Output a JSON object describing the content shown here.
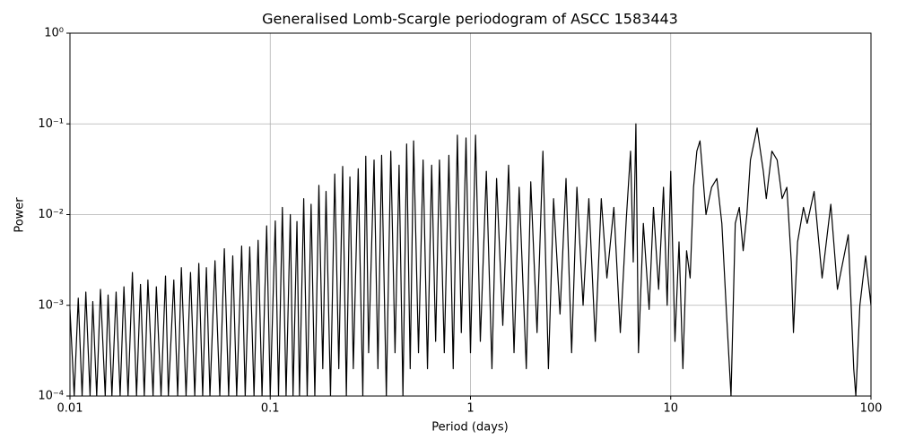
{
  "chart_data": {
    "type": "line",
    "title": "Generalised Lomb-Scargle periodogram of ASCC 1583443",
    "x_label": "Period (days)",
    "y_label": "Power",
    "x_scale": "log",
    "y_scale": "log",
    "grid": true,
    "color": "#000000",
    "xlim": [
      0.01,
      100
    ],
    "ylim": [
      0.0001,
      1
    ],
    "xticks": [
      0.01,
      0.1,
      1,
      10,
      100
    ],
    "yticks": [
      {
        "value": 0.0001,
        "label": "10⁻⁴"
      },
      {
        "value": 0.001,
        "label": "10⁻³"
      },
      {
        "value": 0.01,
        "label": "10⁻²"
      },
      {
        "value": 0.1,
        "label": "10⁻¹"
      },
      {
        "value": 1,
        "label": "10⁰"
      }
    ],
    "x": [
      0.01,
      0.0105,
      0.011,
      0.0115,
      0.012,
      0.0126,
      0.013,
      0.0136,
      0.0142,
      0.015,
      0.0155,
      0.0162,
      0.017,
      0.0178,
      0.0186,
      0.0195,
      0.0205,
      0.0215,
      0.0225,
      0.0235,
      0.0245,
      0.026,
      0.027,
      0.0285,
      0.03,
      0.031,
      0.033,
      0.0345,
      0.036,
      0.038,
      0.04,
      0.042,
      0.044,
      0.046,
      0.048,
      0.05,
      0.053,
      0.056,
      0.059,
      0.062,
      0.065,
      0.068,
      0.072,
      0.075,
      0.079,
      0.083,
      0.087,
      0.091,
      0.096,
      0.1,
      0.106,
      0.11,
      0.115,
      0.12,
      0.126,
      0.13,
      0.136,
      0.14,
      0.147,
      0.153,
      0.16,
      0.167,
      0.175,
      0.183,
      0.19,
      0.2,
      0.21,
      0.22,
      0.23,
      0.24,
      0.25,
      0.26,
      0.275,
      0.29,
      0.3,
      0.31,
      0.33,
      0.345,
      0.36,
      0.38,
      0.4,
      0.42,
      0.44,
      0.46,
      0.48,
      0.5,
      0.52,
      0.55,
      0.58,
      0.61,
      0.64,
      0.67,
      0.7,
      0.74,
      0.78,
      0.82,
      0.86,
      0.9,
      0.95,
      1.0,
      1.06,
      1.12,
      1.2,
      1.28,
      1.35,
      1.45,
      1.55,
      1.65,
      1.75,
      1.9,
      2.0,
      2.15,
      2.3,
      2.45,
      2.6,
      2.8,
      3.0,
      3.2,
      3.4,
      3.65,
      3.9,
      4.2,
      4.5,
      4.8,
      5.2,
      5.6,
      6.0,
      6.3,
      6.5,
      6.7,
      6.9,
      7.3,
      7.8,
      8.2,
      8.7,
      9.2,
      9.6,
      10,
      10.5,
      11,
      11.5,
      12,
      12.5,
      13,
      13.5,
      14,
      15,
      16,
      17,
      18,
      19,
      20,
      21,
      22,
      23,
      24,
      25,
      27,
      29,
      30,
      32,
      34,
      36,
      38,
      40,
      41,
      43,
      46,
      48,
      52,
      57,
      63,
      68,
      77,
      82,
      84,
      88,
      94,
      100
    ],
    "values": [
      0.0009,
      0.0001,
      0.0012,
      0.0001,
      0.0014,
      0.0001,
      0.0011,
      0.0001,
      0.0015,
      0.0001,
      0.0013,
      0.0001,
      0.0014,
      0.0001,
      0.0016,
      0.0001,
      0.0023,
      0.0001,
      0.0017,
      0.0001,
      0.0019,
      0.0001,
      0.0016,
      0.0001,
      0.0021,
      0.0001,
      0.0019,
      0.0001,
      0.0026,
      0.0001,
      0.0023,
      0.0001,
      0.0029,
      0.0001,
      0.0026,
      0.0001,
      0.0031,
      0.0001,
      0.0042,
      0.0001,
      0.0035,
      0.0001,
      0.0045,
      0.0001,
      0.0044,
      0.0001,
      0.0052,
      0.0001,
      0.0075,
      0.0001,
      0.0085,
      0.0001,
      0.012,
      0.0001,
      0.01,
      0.0001,
      0.0084,
      0.0001,
      0.015,
      0.0001,
      0.013,
      0.0001,
      0.021,
      0.0002,
      0.018,
      0.0001,
      0.028,
      0.0002,
      0.034,
      0.0001,
      0.026,
      0.0002,
      0.032,
      0.0001,
      0.044,
      0.0003,
      0.04,
      0.0002,
      0.045,
      0.0001,
      0.05,
      0.0003,
      0.035,
      0.0001,
      0.06,
      0.0002,
      0.065,
      0.0003,
      0.04,
      0.0002,
      0.035,
      0.0004,
      0.04,
      0.0003,
      0.045,
      0.0002,
      0.075,
      0.0005,
      0.07,
      0.0003,
      0.075,
      0.0004,
      0.03,
      0.0002,
      0.025,
      0.0006,
      0.035,
      0.0003,
      0.02,
      0.0002,
      0.023,
      0.0005,
      0.05,
      0.0002,
      0.015,
      0.0008,
      0.025,
      0.0003,
      0.02,
      0.001,
      0.015,
      0.0004,
      0.015,
      0.002,
      0.012,
      0.0005,
      0.009,
      0.05,
      0.003,
      0.1,
      0.0003,
      0.008,
      0.0009,
      0.012,
      0.0015,
      0.02,
      0.001,
      0.03,
      0.0004,
      0.005,
      0.0002,
      0.004,
      0.002,
      0.02,
      0.05,
      0.065,
      0.01,
      0.02,
      0.025,
      0.008,
      0.0008,
      0.0001,
      0.008,
      0.012,
      0.004,
      0.01,
      0.04,
      0.09,
      0.03,
      0.015,
      0.05,
      0.04,
      0.015,
      0.02,
      0.003,
      0.0005,
      0.005,
      0.012,
      0.008,
      0.018,
      0.002,
      0.013,
      0.0015,
      0.006,
      0.0002,
      0.0001,
      0.001,
      0.0035,
      0.001
    ]
  }
}
